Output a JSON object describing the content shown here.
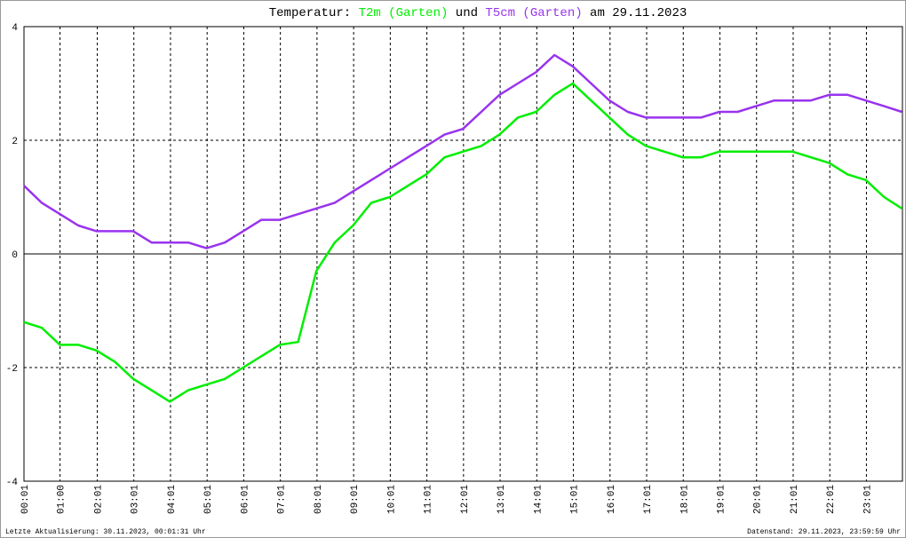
{
  "chart_data": {
    "type": "line",
    "title": "Temperatur:",
    "title_joiner": "und",
    "title_date": "am 29.11.2023",
    "footer_left": "Letzte Aktualisierung: 30.11.2023, 00:01:31 Uhr",
    "footer_right": "Datenstand: 29.11.2023, 23:59:59 Uhr",
    "x": [
      "00:01",
      "00:30",
      "01:00",
      "01:30",
      "02:00",
      "02:30",
      "03:00",
      "03:30",
      "04:00",
      "04:30",
      "05:00",
      "05:30",
      "06:00",
      "06:30",
      "07:00",
      "07:30",
      "08:00",
      "08:30",
      "09:00",
      "09:30",
      "10:00",
      "10:30",
      "11:00",
      "11:30",
      "12:00",
      "12:30",
      "13:00",
      "13:30",
      "14:00",
      "14:30",
      "15:00",
      "15:30",
      "16:00",
      "16:30",
      "17:00",
      "17:30",
      "18:00",
      "18:30",
      "19:00",
      "19:30",
      "20:00",
      "20:30",
      "21:00",
      "21:30",
      "22:00",
      "22:30",
      "23:00",
      "23:30",
      "23:59"
    ],
    "series": [
      {
        "name": "T2m (Garten)",
        "color": "#00ee00",
        "values": [
          -1.2,
          -1.3,
          -1.6,
          -1.6,
          -1.7,
          -1.9,
          -2.2,
          -2.4,
          -2.6,
          -2.4,
          -2.3,
          -2.2,
          -2.0,
          -1.8,
          -1.6,
          -1.55,
          -0.3,
          0.2,
          0.5,
          0.9,
          1.0,
          1.2,
          1.4,
          1.7,
          1.8,
          1.9,
          2.1,
          2.4,
          2.5,
          2.8,
          3.0,
          2.7,
          2.4,
          2.1,
          1.9,
          1.8,
          1.7,
          1.7,
          1.8,
          1.8,
          1.8,
          1.8,
          1.8,
          1.7,
          1.6,
          1.4,
          1.3,
          1.0,
          0.8
        ]
      },
      {
        "name": "T5cm (Garten)",
        "color": "#9933ee",
        "values": [
          1.2,
          0.9,
          0.7,
          0.5,
          0.4,
          0.4,
          0.4,
          0.2,
          0.2,
          0.2,
          0.1,
          0.2,
          0.4,
          0.6,
          0.6,
          0.7,
          0.8,
          0.9,
          1.1,
          1.3,
          1.5,
          1.7,
          1.9,
          2.1,
          2.2,
          2.5,
          2.8,
          3.0,
          3.2,
          3.5,
          3.3,
          3.0,
          2.7,
          2.5,
          2.4,
          2.4,
          2.4,
          2.4,
          2.5,
          2.5,
          2.6,
          2.7,
          2.7,
          2.7,
          2.8,
          2.8,
          2.7,
          2.6,
          2.5
        ]
      }
    ],
    "xlim": [
      "00:01",
      "24:00"
    ],
    "xticks": [
      "00:01",
      "01:00",
      "02:01",
      "03:01",
      "04:01",
      "05:01",
      "06:01",
      "07:01",
      "08:01",
      "09:01",
      "10:01",
      "11:01",
      "12:01",
      "13:01",
      "14:01",
      "15:01",
      "16:01",
      "17:01",
      "18:01",
      "19:01",
      "20:01",
      "21:01",
      "22:01",
      "23:01"
    ],
    "ylim": [
      -4,
      4
    ],
    "yticks": [
      -4,
      -2,
      0,
      2,
      4
    ],
    "grid": true
  }
}
